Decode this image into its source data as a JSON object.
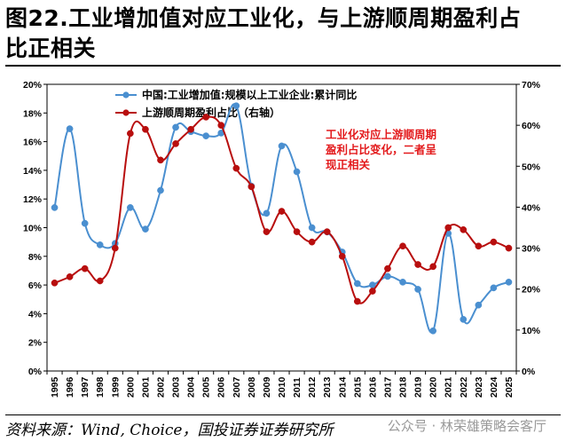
{
  "title_line1": "图22.工业增加值对应工业化，与上游顺周期盈利占",
  "title_line2": "比正相关",
  "source": "资料来源：Wind, Choice，国投证券证券研究所",
  "watermark": "公众号 · 林荣雄策略会客厅",
  "colors": {
    "blue": "#4a8fd0",
    "red": "#b80e0e",
    "annotation": "#e31a1c"
  },
  "chart_data": {
    "type": "line",
    "categories": [
      "1995",
      "1996",
      "1997",
      "1998",
      "1999",
      "2000",
      "2001",
      "2002",
      "2003",
      "2004",
      "2005",
      "2006",
      "2007",
      "2008",
      "2009",
      "2010",
      "2011",
      "2012",
      "2013",
      "2014",
      "2015",
      "2016",
      "2017",
      "2018",
      "2019",
      "2020",
      "2021",
      "2022",
      "2023",
      "2024",
      "2025"
    ],
    "series": [
      {
        "name": "中国:工业增加值:规模以上工业企业:累计同比",
        "axis": "left",
        "color": "#4a8fd0",
        "marker": "circle",
        "values": [
          11.4,
          16.9,
          10.3,
          8.8,
          8.9,
          11.4,
          9.9,
          12.6,
          17.0,
          16.7,
          16.4,
          16.6,
          18.5,
          12.9,
          11.0,
          15.7,
          13.9,
          10.0,
          9.7,
          8.3,
          6.1,
          6.0,
          6.6,
          6.2,
          5.7,
          2.8,
          9.6,
          3.6,
          4.6,
          5.8,
          6.2
        ]
      },
      {
        "name": "上游顺周期盈利占比（右轴）",
        "axis": "right",
        "color": "#b80e0e",
        "marker": "circle",
        "values": [
          21.5,
          23.0,
          25.0,
          22.0,
          30.0,
          58.0,
          59.0,
          51.5,
          55.5,
          59.0,
          62.0,
          60.0,
          49.5,
          45.0,
          34.0,
          39.0,
          34.0,
          31.5,
          34.0,
          28.0,
          17.0,
          19.5,
          25.0,
          30.5,
          26.0,
          25.5,
          35.0,
          34.5,
          30.5,
          31.5,
          30.0
        ]
      }
    ],
    "left_axis": {
      "min": 0,
      "max": 20,
      "step": 2,
      "suffix": "%"
    },
    "right_axis": {
      "min": 0,
      "max": 70,
      "step": 10,
      "suffix": "%"
    },
    "legend_position": "top-left",
    "annotation": [
      "工业化对应上游顺周期",
      "盈利占比变化，二者呈",
      "现正相关"
    ]
  }
}
